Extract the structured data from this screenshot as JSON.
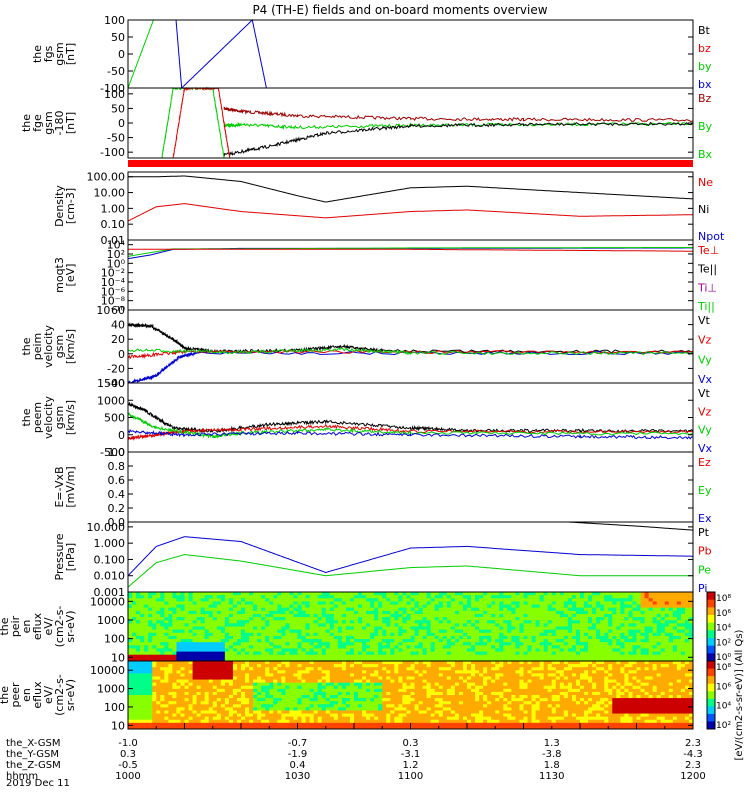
{
  "title": "P4 (TH-E) fields and on-board moments overview",
  "colors": {
    "black": "#000000",
    "red": "#dd0000",
    "green": "#00cc00",
    "blue": "#0000cc",
    "darkred": "#990000"
  },
  "chart_data": [
    {
      "type": "line",
      "name": "fgs",
      "ylabel": [
        "the",
        "fgs",
        "gsm",
        "[nT]"
      ],
      "ylim": [
        -100,
        100
      ],
      "yticks": [
        "100",
        "50",
        "0",
        "-50",
        "-100"
      ],
      "legend": [
        {
          "label": "Bt",
          "color": "#000000"
        },
        {
          "label": "bz",
          "color": "#dd0000"
        },
        {
          "label": "by",
          "color": "#00cc00"
        },
        {
          "label": "bx",
          "color": "#0000cc"
        }
      ],
      "series": [
        {
          "color": "#00cc00",
          "t": [
            0.0,
            0.045,
            0.055
          ],
          "y": [
            -100,
            100,
            100
          ]
        },
        {
          "color": "#0000cc",
          "t": [
            0.085,
            0.095,
            0.22,
            0.245
          ],
          "y": [
            100,
            -100,
            100,
            -100
          ]
        }
      ]
    },
    {
      "type": "line",
      "name": "fge",
      "ylabel": [
        "the",
        "fge",
        "gsm",
        "-180",
        "[nT]"
      ],
      "ylim": [
        -120,
        120
      ],
      "yticks": [
        "100",
        "50",
        "0",
        "-50",
        "-100"
      ],
      "yticks_v": [
        100,
        50,
        0,
        -50,
        -100
      ],
      "legend": [
        {
          "label": "Bz",
          "color": "#990000"
        },
        {
          "label": "By",
          "color": "#00cc00"
        },
        {
          "label": "Bx",
          "color": "#00cc00"
        }
      ],
      "series": [
        {
          "color": "#990000",
          "t": [
            0.17,
            0.2,
            0.3,
            0.5,
            0.7,
            1.0
          ],
          "y": [
            50,
            40,
            25,
            15,
            12,
            10
          ]
        },
        {
          "color": "#00cc00",
          "t": [
            0.17,
            0.2,
            0.3,
            0.5,
            0.7,
            1.0
          ],
          "y": [
            -10,
            -5,
            -15,
            -8,
            -5,
            -3
          ]
        },
        {
          "color": "#000000",
          "t": [
            0.17,
            0.25,
            0.35,
            0.5,
            0.7,
            1.0
          ],
          "y": [
            -110,
            -80,
            -35,
            -10,
            -5,
            -2
          ]
        },
        {
          "color": "#00cc00",
          "t": [
            0.06,
            0.08,
            0.15,
            0.17
          ],
          "y": [
            -120,
            120,
            120,
            -120
          ]
        },
        {
          "color": "#dd0000",
          "t": [
            0.08,
            0.1,
            0.16,
            0.18
          ],
          "y": [
            -120,
            120,
            120,
            -120
          ]
        }
      ]
    },
    {
      "type": "log-line",
      "name": "density",
      "ylabel": [
        "Density",
        "[cm-3]"
      ],
      "ylog": [
        -2,
        2.3
      ],
      "yticks": [
        "100.00",
        "10.00",
        "1.00",
        "0.10",
        "0.01"
      ],
      "yticks_v": [
        2,
        1,
        0,
        -1,
        -2
      ],
      "legend": [
        {
          "label": "Ne",
          "color": "#dd0000"
        },
        {
          "label": "Ni",
          "color": "#000000"
        },
        {
          "label": "Npot",
          "color": "#0000cc"
        }
      ],
      "series": [
        {
          "color": "#000000",
          "t": [
            0.0,
            0.05,
            0.1,
            0.2,
            0.3,
            0.35,
            0.5,
            0.6,
            0.8,
            1.0
          ],
          "y": [
            2.0,
            2.0,
            2.05,
            1.7,
            0.8,
            0.4,
            1.3,
            1.4,
            1.0,
            0.6
          ]
        },
        {
          "color": "#dd0000",
          "t": [
            0.0,
            0.05,
            0.1,
            0.2,
            0.35,
            0.5,
            0.6,
            0.8,
            1.0
          ],
          "y": [
            -0.8,
            0.1,
            0.3,
            -0.2,
            -0.6,
            -0.2,
            -0.1,
            -0.5,
            -0.4
          ]
        }
      ]
    },
    {
      "type": "log-line",
      "name": "temperature",
      "ylabel": [
        "moqt3",
        "[eV]"
      ],
      "ylog": [
        -10,
        5
      ],
      "yticks": [
        "10⁴",
        "10²",
        "10⁰",
        "10⁻²",
        "10⁻⁴",
        "10⁻⁶",
        "10⁻⁸",
        "10⁻¹⁰"
      ],
      "yticks_v": [
        4,
        2,
        0,
        -2,
        -4,
        -6,
        -8,
        -10
      ],
      "legend": [
        {
          "label": "Te⊥",
          "color": "#dd0000"
        },
        {
          "label": "Te||",
          "color": "#000000"
        },
        {
          "label": "Ti⊥",
          "color": "#990099"
        },
        {
          "label": "Ti||",
          "color": "#00cc00"
        }
      ],
      "series": [
        {
          "color": "#0000cc",
          "t": [
            0.0,
            0.04,
            0.08,
            0.2,
            0.5,
            1.0
          ],
          "y": [
            1,
            1.8,
            3,
            3.2,
            3.2,
            3.3
          ]
        },
        {
          "color": "#00cc00",
          "t": [
            0.0,
            0.08,
            0.2,
            0.5,
            1.0
          ],
          "y": [
            1.5,
            3.1,
            3.1,
            3.3,
            3.4
          ]
        },
        {
          "color": "#dd0000",
          "t": [
            0.0,
            0.2,
            0.5,
            1.0
          ],
          "y": [
            3.0,
            3.0,
            3.0,
            2.6
          ]
        }
      ]
    },
    {
      "type": "line",
      "name": "peim-velocity",
      "ylabel": [
        "the",
        "peim",
        "velocity",
        "gsm",
        "[km/s]"
      ],
      "ylim": [
        -40,
        60
      ],
      "yticks": [
        "60",
        "40",
        "20",
        "0",
        "-20",
        "-40"
      ],
      "legend": [
        {
          "label": "Vt",
          "color": "#000000"
        },
        {
          "label": "Vz",
          "color": "#dd0000"
        },
        {
          "label": "Vy",
          "color": "#00cc00"
        },
        {
          "label": "Vx",
          "color": "#0000cc"
        }
      ],
      "series": [
        {
          "color": "#000000",
          "t": [
            0.0,
            0.04,
            0.08,
            0.1,
            0.15,
            0.3,
            0.38,
            0.45,
            1.0
          ],
          "y": [
            40,
            38,
            20,
            8,
            3,
            5,
            10,
            4,
            3
          ]
        },
        {
          "color": "#0000cc",
          "t": [
            0.0,
            0.05,
            0.09,
            0.12,
            1.0
          ],
          "y": [
            -40,
            -30,
            -5,
            1,
            1
          ]
        },
        {
          "color": "#dd0000",
          "t": [
            0.0,
            0.1,
            1.0
          ],
          "y": [
            -5,
            3,
            2
          ]
        },
        {
          "color": "#00cc00",
          "t": [
            0.0,
            0.2,
            0.38,
            0.5,
            1.0
          ],
          "y": [
            5,
            2,
            6,
            1,
            1
          ]
        }
      ]
    },
    {
      "type": "line",
      "name": "peem-velocity",
      "ylabel": [
        "the",
        "peem",
        "velocity",
        "gsm",
        "[km/s]"
      ],
      "ylim": [
        -500,
        1500
      ],
      "yticks": [
        "1500",
        "1000",
        "500",
        "0",
        "-500"
      ],
      "legend": [
        {
          "label": "Vt",
          "color": "#000000"
        },
        {
          "label": "Vz",
          "color": "#dd0000"
        },
        {
          "label": "Vy",
          "color": "#00cc00"
        },
        {
          "label": "Vx",
          "color": "#0000cc"
        }
      ],
      "series": [
        {
          "color": "#000000",
          "t": [
            0.0,
            0.03,
            0.08,
            0.15,
            0.25,
            0.35,
            0.5,
            0.6,
            0.8,
            1.0
          ],
          "y": [
            900,
            700,
            200,
            100,
            300,
            380,
            200,
            120,
            120,
            100
          ]
        },
        {
          "color": "#dd0000",
          "t": [
            0.0,
            0.05,
            0.1,
            0.2,
            0.35,
            0.5,
            1.0
          ],
          "y": [
            -100,
            0,
            100,
            150,
            250,
            100,
            80
          ]
        },
        {
          "color": "#00cc00",
          "t": [
            0.0,
            0.05,
            0.15,
            0.2,
            0.35,
            0.5,
            1.0
          ],
          "y": [
            600,
            200,
            -50,
            50,
            150,
            50,
            30
          ]
        },
        {
          "color": "#0000cc",
          "t": [
            0.0,
            0.1,
            0.3,
            0.5,
            0.8,
            1.0
          ],
          "y": [
            100,
            0,
            50,
            0,
            -50,
            -80
          ]
        }
      ]
    },
    {
      "type": "line",
      "name": "efield",
      "ylabel": [
        "E=-VxB",
        "[mV/m]"
      ],
      "ylim": [
        0,
        1
      ],
      "yticks": [
        "1.0",
        "0.8",
        "0.6",
        "0.4",
        "0.2",
        "0.0"
      ],
      "legend": [
        {
          "label": "Ez",
          "color": "#dd0000"
        },
        {
          "label": "Ey",
          "color": "#00cc00"
        },
        {
          "label": "Ex",
          "color": "#0000cc"
        }
      ],
      "series": []
    },
    {
      "type": "log-line",
      "name": "pressure",
      "ylabel": [
        "Pressure",
        "[nPa]"
      ],
      "ylog": [
        -3,
        1.3
      ],
      "yticks": [
        "10.000",
        "1.000",
        "0.100",
        "0.010",
        "0.001"
      ],
      "yticks_v": [
        1,
        0,
        -1,
        -2,
        -3
      ],
      "legend": [
        {
          "label": "Pt",
          "color": "#000000"
        },
        {
          "label": "Pb",
          "color": "#dd0000"
        },
        {
          "label": "Pe",
          "color": "#00cc00"
        },
        {
          "label": "Pi",
          "color": "#0000cc"
        }
      ],
      "series": [
        {
          "color": "#000000",
          "t": [
            0.78,
            0.9,
            1.0
          ],
          "y": [
            1.3,
            1.05,
            0.8
          ]
        },
        {
          "color": "#0000cc",
          "t": [
            0.0,
            0.05,
            0.1,
            0.2,
            0.35,
            0.5,
            0.6,
            0.8,
            1.0
          ],
          "y": [
            -2.0,
            -0.2,
            0.4,
            0.1,
            -1.8,
            -0.3,
            -0.2,
            -0.7,
            -0.8
          ]
        },
        {
          "color": "#00cc00",
          "t": [
            0.0,
            0.05,
            0.1,
            0.2,
            0.35,
            0.5,
            0.6,
            0.8,
            1.0
          ],
          "y": [
            -2.7,
            -1.2,
            -0.7,
            -1.1,
            -2.0,
            -1.5,
            -1.4,
            -2.0,
            -2.0
          ]
        }
      ]
    },
    {
      "type": "heatmap",
      "name": "peir-eflux",
      "ylabel": [
        "the",
        "peir",
        "en",
        "eflux",
        "eV/",
        "(cm2-s-",
        "sr-eV)"
      ],
      "yticks": [
        "10000",
        "1000",
        "100",
        "10"
      ],
      "yticks_v": [
        4,
        3,
        2,
        1
      ],
      "ylog": [
        0.8,
        4.5
      ]
    },
    {
      "type": "heatmap",
      "name": "peer-eflux",
      "ylabel": [
        "the",
        "peer",
        "en",
        "eflux",
        "eV/",
        "(cm2-s-",
        "sr-eV)"
      ],
      "yticks": [
        "10000",
        "1000",
        "100",
        "10"
      ],
      "yticks_v": [
        4,
        3,
        2,
        1
      ],
      "ylog": [
        0.8,
        4.5
      ]
    }
  ],
  "colorbar": {
    "label": "[eV/(cm2-s-sr-eV)] (All Qs)",
    "upper_ticks": [
      "10⁸",
      "10⁶",
      "10⁴",
      "10²",
      "10⁰"
    ],
    "lower_ticks": [
      "10⁸",
      "10⁶",
      "10⁴",
      "10²"
    ]
  },
  "xaxis": {
    "rows": [
      {
        "label": "the_X-GSM",
        "values": [
          "-1.0",
          "-0.7",
          "0.3",
          "1.3",
          "2.3"
        ]
      },
      {
        "label": "the_Y-GSM",
        "values": [
          "0.3",
          "-1.9",
          "-3.1",
          "-3.8",
          "-4.3"
        ]
      },
      {
        "label": "the_Z-GSM",
        "values": [
          "-0.5",
          "0.4",
          "1.2",
          "1.8",
          "2.3"
        ]
      },
      {
        "label": "hhmm",
        "values": [
          "1000",
          "1030",
          "1100",
          "1130",
          "1200"
        ]
      }
    ],
    "date": "2019 Dec 11"
  }
}
